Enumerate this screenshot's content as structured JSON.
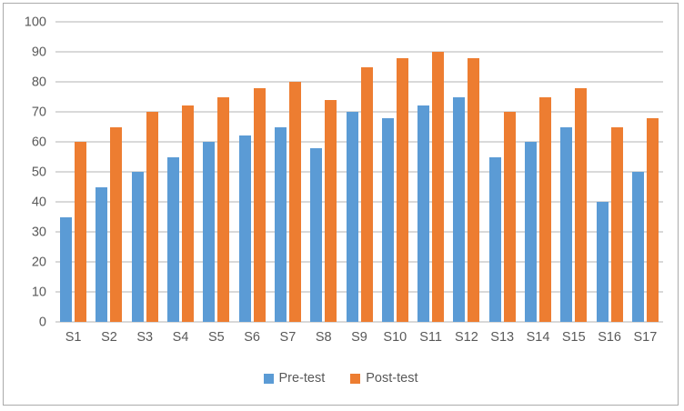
{
  "chart_data": {
    "type": "bar",
    "title": "",
    "xlabel": "",
    "ylabel": "",
    "categories": [
      "S1",
      "S2",
      "S3",
      "S4",
      "S5",
      "S6",
      "S7",
      "S8",
      "S9",
      "S10",
      "S11",
      "S12",
      "S13",
      "S14",
      "S15",
      "S16",
      "S17"
    ],
    "series": [
      {
        "name": "Pre-test",
        "color": "#5b9bd5",
        "values": [
          35,
          45,
          50,
          55,
          60,
          62,
          65,
          58,
          70,
          68,
          72,
          75,
          55,
          60,
          65,
          40,
          50
        ]
      },
      {
        "name": "Post-test",
        "color": "#ed7d31",
        "values": [
          60,
          65,
          70,
          72,
          75,
          78,
          80,
          74,
          85,
          88,
          90,
          88,
          70,
          75,
          78,
          65,
          68
        ]
      }
    ],
    "ylim": [
      0,
      100
    ],
    "yticks": [
      0,
      10,
      20,
      30,
      40,
      50,
      60,
      70,
      80,
      90,
      100
    ],
    "grid": "horizontal",
    "legend_position": "bottom",
    "colors": {
      "gridline": "#d9d9d9",
      "axis_text": "#595959",
      "frame_border": "#ababab",
      "background": "#ffffff"
    }
  }
}
